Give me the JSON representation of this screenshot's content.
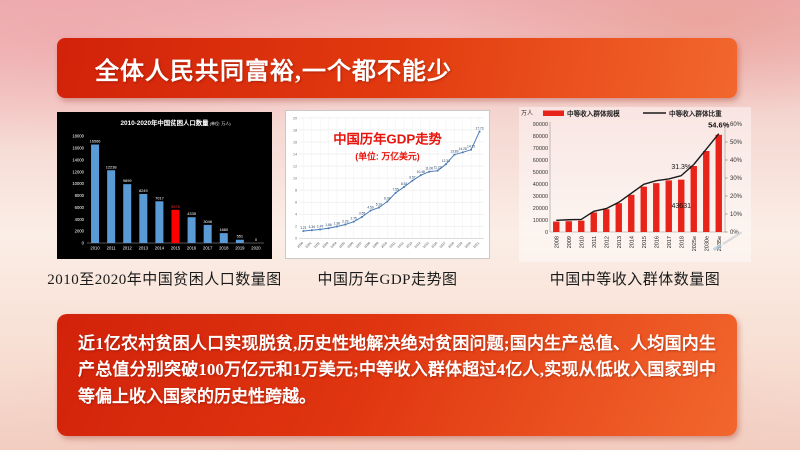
{
  "page": {
    "title_banner": "全体人民共同富裕,一个都不能少",
    "bottom_text": "近1亿农村贫困人口实现脱贫,历史性地解决绝对贫困问题;国内生产总值、人均国内生产总值分别突破100万亿元和1万美元;中等收入群体超过4亿人,实现从低收入国家到中等偏上收入国家的历史性跨越。"
  },
  "captions": [
    "2010至2020年中国贫困人口数量图",
    "中国历年GDP走势图",
    "中国中等收入群体数量图"
  ],
  "colors": {
    "banner_red": "#d2220a",
    "banner_orange": "#f2672d",
    "poverty_bar_blue": "#5b9bd5",
    "poverty_highlight_red": "#ff0000",
    "gdp_line_blue": "#4a7ab5",
    "gdp_title_red": "#e8150d",
    "income_bar_red": "#e8231a",
    "income_line_black": "#1a1a1a"
  },
  "chart_data": [
    {
      "type": "bar",
      "title": "2010-2020年中国贫困人口数量",
      "unit_label": "(单位: 万人)",
      "categories": [
        "2010",
        "2011",
        "2012",
        "2013",
        "2014",
        "2015",
        "2016",
        "2017",
        "2018",
        "2019",
        "2020"
      ],
      "values": [
        16566,
        12238,
        9899,
        8249,
        7017,
        5575,
        4335,
        3046,
        1660,
        551,
        0
      ],
      "highlight_index": 5,
      "ylim": [
        0,
        18000
      ],
      "ytick": 2000,
      "background": "#000000",
      "bar_color": "#5b9bd5",
      "highlight_color": "#ff0000",
      "text_color": "#ffffff",
      "grid": false
    },
    {
      "type": "line",
      "title": "中国历年GDP走势",
      "subtitle": "(单位: 万亿美元)",
      "x": [
        "2000",
        "2001",
        "2002",
        "2003",
        "2004",
        "2005",
        "2006",
        "2007",
        "2008",
        "2009",
        "2010",
        "2011",
        "2012",
        "2013",
        "2014",
        "2015",
        "2016",
        "2017",
        "2018",
        "2019",
        "2020",
        "2021"
      ],
      "values": [
        1.21,
        1.34,
        1.47,
        1.66,
        1.96,
        2.29,
        2.75,
        3.55,
        4.59,
        5.1,
        6.09,
        7.55,
        8.53,
        9.57,
        10.48,
        11.06,
        11.23,
        12.31,
        13.89,
        14.28,
        14.72,
        17.73
      ],
      "ylim": [
        0,
        20
      ],
      "ytick": 2,
      "line_color": "#4a7ab5",
      "title_color": "#e8150d",
      "grid": true,
      "legend_position": "none"
    },
    {
      "type": "bar+line",
      "unit_left": "万人",
      "categories": [
        "2008",
        "2009",
        "2010",
        "2011",
        "2012",
        "2013",
        "2014",
        "2015",
        "2016",
        "2017",
        "2018",
        "2025e",
        "2030e",
        "2035e"
      ],
      "series": [
        {
          "name": "中等收入群体规模",
          "type": "bar",
          "axis": "left",
          "color": "#e8231a",
          "values": [
            8700,
            9000,
            9500,
            16300,
            19000,
            24000,
            31000,
            37800,
            40700,
            43000,
            43631,
            55000,
            67500,
            81000
          ]
        },
        {
          "name": "中等收入群体比重",
          "type": "line",
          "axis": "right",
          "color": "#1a1a1a",
          "values": [
            6.5,
            6.8,
            7,
            11.5,
            13,
            16.5,
            21.5,
            26.5,
            28.5,
            29.5,
            31.3,
            37.5,
            46,
            54.6
          ]
        }
      ],
      "ylim_left": [
        0,
        90000
      ],
      "ytick_left": 10000,
      "ylim_right": [
        0,
        60
      ],
      "ytick_right": 10,
      "legend_position": "top",
      "annotations": [
        {
          "text": "43631",
          "x": "2018",
          "y": 20000,
          "axis": "left"
        },
        {
          "text": "31.3%",
          "x": "2018",
          "y": 35,
          "axis": "right"
        },
        {
          "text": "54.6%",
          "x": "2035e",
          "y": 58,
          "axis": "right"
        }
      ]
    }
  ]
}
